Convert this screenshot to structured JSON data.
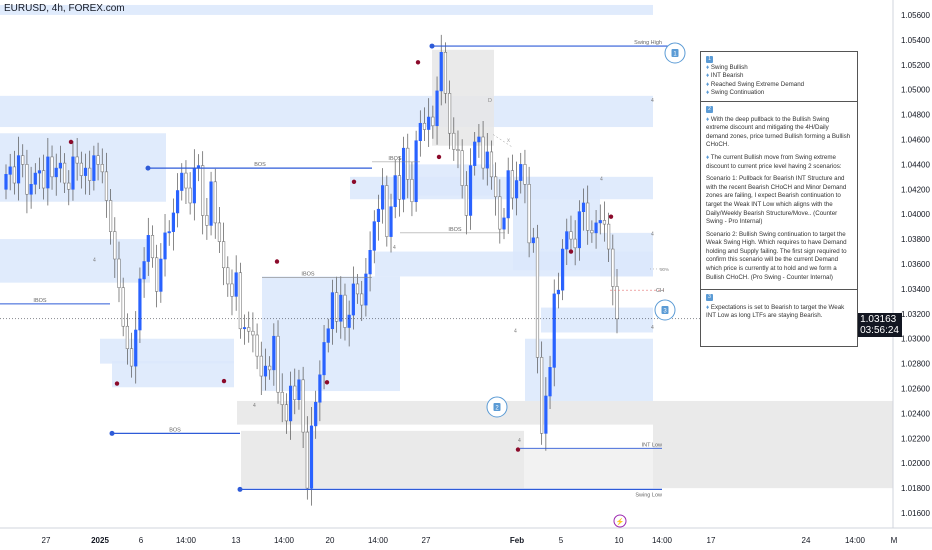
{
  "header": {
    "symbol": "EURUSD, 4h, FOREX.com"
  },
  "price_scale": {
    "current_price": "1.03163",
    "countdown": "03:56:24",
    "current_color": "#131722"
  },
  "annotations": {
    "swing_high": "Swing High",
    "swing_low": "Swing Low",
    "int_low": "INT Low",
    "ch": "CH",
    "pct50": "50%",
    "bos": "BOS",
    "ibos": "IBOS",
    "callout_1": "1",
    "callout_2": "2",
    "callout_3": "3",
    "d": "D",
    "four": "4",
    "x_mark": "x"
  },
  "colors": {
    "bull_candle": "#2962ff",
    "bear_candle": "#7a7a7a",
    "zone_blue": "#dbe7fb",
    "zone_gray": "#e6e6e6",
    "structure_line": "#2e5bd8",
    "pivot_red": "#8b0a2a",
    "callout": "#5b9bd5"
  },
  "info_panel": {
    "sec1_num": "1",
    "sec1_items": [
      "Swing Bullish",
      "INT Bearish",
      "Reached Swing Extreme Demand",
      "Swing Continuation"
    ],
    "sec2_num": "2",
    "sec2_p1": "With the deep pullback to the Bullish Swing extreme discount and mitigating the 4H/Daily demand zones, price turned Bullish forming a Bullish CHoCH.",
    "sec2_p2": "The current Bullish move from Swing extreme discount to current price level having 2 scenarios:",
    "sec2_p3": "Scenario 1: Pullback for Bearish INT Structure and with the recent Bearish CHoCH and Minor Demand zones are failing, I expect Bearish continuation to target the Weak INT Low which aligns with the Daily/Weekly Bearish Structure/Move.. (Counter Swing - Pro Internal)",
    "sec2_p4": "Scenario 2: Bullish Swing continuation to target the Weak Swing High. Which requires to have Demand holding and Supply failing. The first sign required to confirm this scenario will be the current Demand which price is currently at to hold and we form a Bullish CHoCH. (Pro Swing - Counter Internal)",
    "sec3_num": "3",
    "sec3_p1": "Expectations is set to Bearish to target the Weak INT Low as long LTFs are staying Bearish."
  },
  "chart_data": {
    "type": "candlestick",
    "symbol": "EURUSD",
    "timeframe": "4h",
    "y_axis": {
      "ticks": [
        "1.05600",
        "1.05400",
        "1.05200",
        "1.05000",
        "1.04800",
        "1.04600",
        "1.04400",
        "1.04200",
        "1.04000",
        "1.03800",
        "1.03600",
        "1.03400",
        "1.03200",
        "1.03000",
        "1.02800",
        "1.02600",
        "1.02400",
        "1.02200",
        "1.02000",
        "1.01800",
        "1.01600"
      ],
      "range": [
        1.0148,
        1.0572
      ]
    },
    "x_axis": {
      "ticks": [
        "27",
        "2025",
        "6",
        "14:00",
        "13",
        "14:00",
        "20",
        "14:00",
        "27",
        "Feb",
        "5",
        "10",
        "14:00",
        "17",
        "24",
        "14:00",
        "M"
      ]
    },
    "levels": [
      {
        "label": "Swing High",
        "price": 1.0535
      },
      {
        "label": "Swing Low",
        "price": 1.0179
      },
      {
        "label": "INT Low",
        "price": 1.0212
      },
      {
        "label": "CH",
        "price": 1.0339
      },
      {
        "label": "50%",
        "price": 1.0356
      }
    ],
    "closes": [
      1.0432,
      1.0438,
      1.0425,
      1.0447,
      1.044,
      1.0416,
      1.0424,
      1.0433,
      1.0435,
      1.0421,
      1.0446,
      1.043,
      1.0437,
      1.0441,
      1.0425,
      1.042,
      1.0446,
      1.0441,
      1.0431,
      1.0437,
      1.0427,
      1.0447,
      1.044,
      1.0434,
      1.0411,
      1.0386,
      1.0364,
      1.0341,
      1.031,
      1.0292,
      1.0278,
      1.0307,
      1.0348,
      1.0362,
      1.0383,
      1.0365,
      1.0338,
      1.0364,
      1.0385,
      1.0386,
      1.0401,
      1.0419,
      1.0433,
      1.0421,
      1.0409,
      1.0437,
      1.0439,
      1.0399,
      1.0391,
      1.0426,
      1.0393,
      1.0378,
      1.0357,
      1.0344,
      1.0334,
      1.0353,
      1.0308,
      1.0309,
      1.0306,
      1.0303,
      1.0286,
      1.027,
      1.0278,
      1.0275,
      1.0302,
      1.0257,
      1.0247,
      1.0234,
      1.0262,
      1.0251,
      1.0267,
      1.0225,
      1.018,
      1.023,
      1.0249,
      1.0271,
      1.0297,
      1.0308,
      1.0337,
      1.0314,
      1.0335,
      1.0309,
      1.0319,
      1.0344,
      1.0336,
      1.0327,
      1.0352,
      1.0371,
      1.0394,
      1.0404,
      1.0423,
      1.0382,
      1.0406,
      1.0431,
      1.0412,
      1.0453,
      1.0428,
      1.041,
      1.0459,
      1.0473,
      1.0468,
      1.0478,
      1.0471,
      1.0499,
      1.053,
      1.0497,
      1.0465,
      1.0452,
      1.0451,
      1.0423,
      1.0399,
      1.0439,
      1.0458,
      1.0462,
      1.0437,
      1.045,
      1.043,
      1.0414,
      1.0388,
      1.0397,
      1.0435,
      1.0413,
      1.0427,
      1.044,
      1.0424,
      1.0377,
      1.0381,
      1.0285,
      1.0224,
      1.0254,
      1.0277,
      1.0336,
      1.0339,
      1.0372,
      1.0386,
      1.038,
      1.0373,
      1.0402,
      1.0409,
      1.0387,
      1.0385,
      1.0393,
      1.0395,
      1.0392,
      1.0372,
      1.0342,
      1.0316
    ]
  }
}
